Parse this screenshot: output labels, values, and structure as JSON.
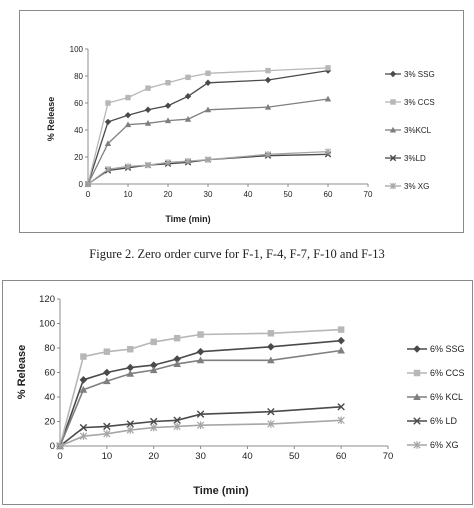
{
  "chart_data": [
    {
      "type": "line",
      "title": "",
      "xlabel": "Time (min)",
      "ylabel": "% Release",
      "xlim": [
        0,
        70
      ],
      "ylim": [
        0,
        100
      ],
      "xticks": [
        0,
        10,
        20,
        30,
        40,
        50,
        60,
        70
      ],
      "yticks": [
        0,
        20,
        40,
        60,
        80,
        100
      ],
      "grid": false,
      "legend_position": "right",
      "series": [
        {
          "name": "3% SSG",
          "color": "#4a4a4a",
          "marker": "diamond",
          "x": [
            0,
            5,
            10,
            15,
            20,
            25,
            30,
            45,
            60
          ],
          "y": [
            0,
            46,
            51,
            55,
            58,
            65,
            75,
            77,
            84
          ]
        },
        {
          "name": "3% CCS",
          "color": "#b7b7b7",
          "marker": "square",
          "x": [
            0,
            5,
            10,
            15,
            20,
            25,
            30,
            45,
            60
          ],
          "y": [
            0,
            60,
            64,
            71,
            75,
            79,
            82,
            84,
            86
          ]
        },
        {
          "name": "3%KCL",
          "color": "#7f7f7f",
          "marker": "triangle",
          "x": [
            0,
            5,
            10,
            15,
            20,
            25,
            30,
            45,
            60
          ],
          "y": [
            0,
            30,
            44,
            45,
            47,
            48,
            55,
            57,
            63
          ]
        },
        {
          "name": "3%LD",
          "color": "#4a4a4a",
          "marker": "x",
          "x": [
            0,
            5,
            10,
            15,
            20,
            25,
            30,
            45,
            60
          ],
          "y": [
            0,
            10,
            12,
            14,
            15,
            16,
            18,
            21,
            22
          ]
        },
        {
          "name": "3% XG",
          "color": "#a6a6a6",
          "marker": "star",
          "x": [
            0,
            5,
            10,
            15,
            20,
            25,
            30,
            45,
            60
          ],
          "y": [
            0,
            11,
            13,
            14,
            16,
            17,
            18,
            22,
            24
          ]
        }
      ]
    },
    {
      "type": "line",
      "title": "",
      "xlabel": "Time (min)",
      "ylabel": "% Release",
      "xlim": [
        0,
        70
      ],
      "ylim": [
        0,
        120
      ],
      "xticks": [
        0,
        10,
        20,
        30,
        40,
        50,
        60,
        70
      ],
      "yticks": [
        0,
        20,
        40,
        60,
        80,
        100,
        120
      ],
      "grid": false,
      "legend_position": "right",
      "series": [
        {
          "name": "6% SSG",
          "color": "#4a4a4a",
          "marker": "diamond",
          "x": [
            0,
            5,
            10,
            15,
            20,
            25,
            30,
            45,
            60
          ],
          "y": [
            0,
            54,
            60,
            64,
            66,
            71,
            77,
            81,
            86
          ]
        },
        {
          "name": "6% CCS",
          "color": "#b7b7b7",
          "marker": "square",
          "x": [
            0,
            5,
            10,
            15,
            20,
            25,
            30,
            45,
            60
          ],
          "y": [
            0,
            73,
            77,
            79,
            85,
            88,
            91,
            92,
            95
          ]
        },
        {
          "name": "6% KCL",
          "color": "#7f7f7f",
          "marker": "triangle",
          "x": [
            0,
            5,
            10,
            15,
            20,
            25,
            30,
            45,
            60
          ],
          "y": [
            0,
            46,
            53,
            59,
            62,
            67,
            70,
            70,
            78
          ]
        },
        {
          "name": "6% LD",
          "color": "#4a4a4a",
          "marker": "x",
          "x": [
            0,
            5,
            10,
            15,
            20,
            25,
            30,
            45,
            60
          ],
          "y": [
            0,
            15,
            16,
            18,
            20,
            21,
            26,
            28,
            32
          ]
        },
        {
          "name": "6% XG",
          "color": "#a6a6a6",
          "marker": "star",
          "x": [
            0,
            5,
            10,
            15,
            20,
            25,
            30,
            45,
            60
          ],
          "y": [
            0,
            8,
            10,
            13,
            15,
            16,
            17,
            18,
            21
          ]
        }
      ]
    }
  ],
  "caption": "Figure 2. Zero order curve for F-1, F-4, F-7, F-10 and F-13"
}
